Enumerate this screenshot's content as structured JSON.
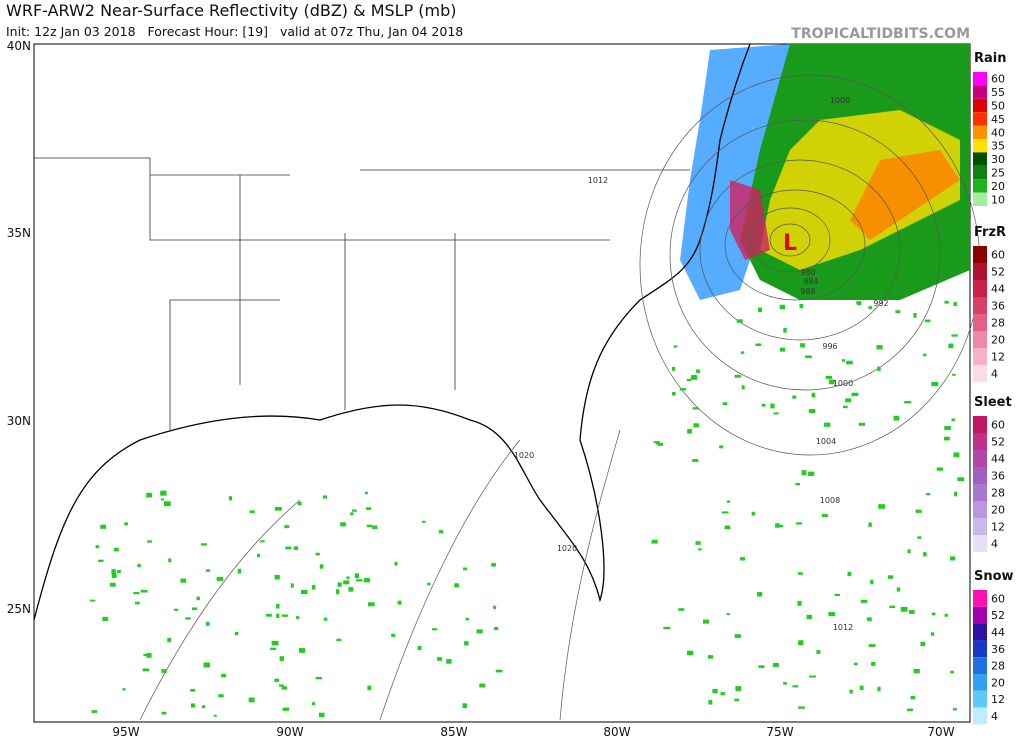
{
  "header": {
    "title": "WRF-ARW2 Near-Surface Reflectivity (dBZ) & MSLP (mb)",
    "subtitle": "Init: 12z Jan 03 2018   Forecast Hour: [19]   valid at 07z Thu, Jan 04 2018",
    "watermark": "TROPICALTIDBITS.COM"
  },
  "map": {
    "lat_labels": [
      "40N",
      "35N",
      "30N",
      "25N"
    ],
    "lon_labels": [
      "95W",
      "90W",
      "85W",
      "80W",
      "75W",
      "70W"
    ],
    "isobar_labels": [
      "1012",
      "980",
      "984",
      "988",
      "992",
      "996",
      "1000",
      "1004",
      "1008",
      "1012",
      "1020",
      "1020",
      "1000"
    ],
    "low_label": "L"
  },
  "legends": [
    {
      "title": "Rain",
      "labels": [
        "60",
        "55",
        "50",
        "45",
        "40",
        "35",
        "30",
        "25",
        "20",
        "10"
      ],
      "colors": [
        "#ff00ff",
        "#c8007a",
        "#e00000",
        "#ff3000",
        "#ff9000",
        "#ffe000",
        "#005000",
        "#108010",
        "#20b020",
        "#a0f0a0"
      ]
    },
    {
      "title": "FrzR",
      "labels": [
        "60",
        "52",
        "44",
        "36",
        "28",
        "20",
        "12",
        "4"
      ],
      "colors": [
        "#8b0000",
        "#b01030",
        "#c82048",
        "#d84068",
        "#e46088",
        "#ee88a8",
        "#f6b0c8",
        "#fcdce8"
      ]
    },
    {
      "title": "Sleet",
      "labels": [
        "60",
        "52",
        "44",
        "36",
        "28",
        "20",
        "12",
        "4"
      ],
      "colors": [
        "#c01860",
        "#c03088",
        "#b048a8",
        "#a060c0",
        "#a878d0",
        "#b898e0",
        "#cab8ec",
        "#e8e0f8"
      ]
    },
    {
      "title": "Snow",
      "labels": [
        "60",
        "52",
        "44",
        "36",
        "28",
        "20",
        "12",
        "4"
      ],
      "colors": [
        "#ff10b0",
        "#a000b0",
        "#3010a0",
        "#1838c8",
        "#2070e0",
        "#30a0f0",
        "#60c8f8",
        "#c0ecff"
      ]
    }
  ]
}
